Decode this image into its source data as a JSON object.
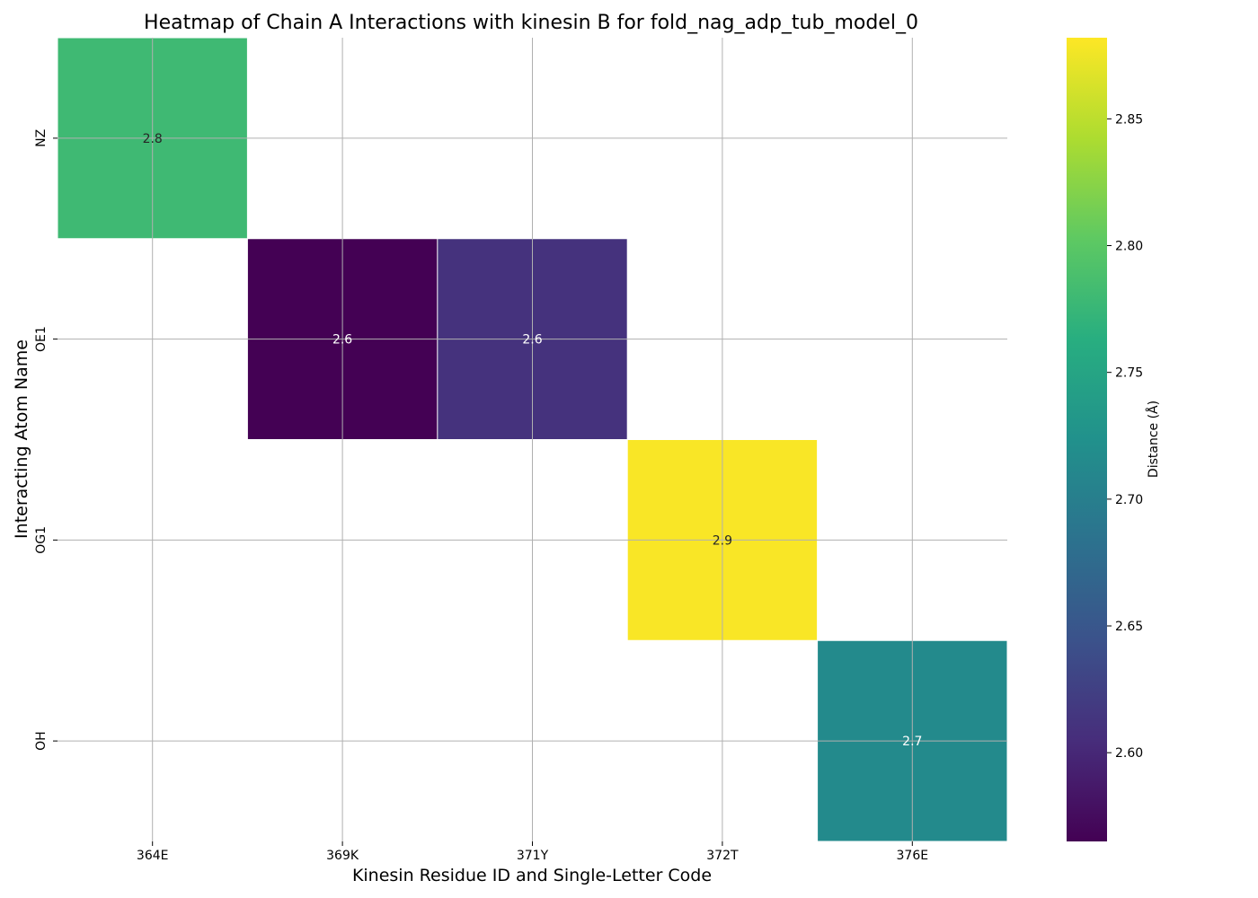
{
  "chart_data": {
    "type": "heatmap",
    "title": "Heatmap of Chain A Interactions with kinesin B for fold_nag_adp_tub_model_0",
    "xlabel": "Kinesin Residue ID and Single-Letter Code",
    "ylabel": "Interacting Atom Name",
    "x_categories": [
      "364E",
      "369K",
      "371Y",
      "372T",
      "376E"
    ],
    "y_categories": [
      "NZ",
      "OE1",
      "OG1",
      "OH"
    ],
    "cells": [
      {
        "x": "364E",
        "y": "NZ",
        "value": 2.78,
        "label": "2.8"
      },
      {
        "x": "369K",
        "y": "OE1",
        "value": 2.565,
        "label": "2.6"
      },
      {
        "x": "371Y",
        "y": "OE1",
        "value": 2.61,
        "label": "2.6"
      },
      {
        "x": "372T",
        "y": "OG1",
        "value": 2.88,
        "label": "2.9"
      },
      {
        "x": "376E",
        "y": "OH",
        "value": 2.715,
        "label": "2.7"
      }
    ],
    "colormap": "viridis",
    "colorbar": {
      "label": "Distance (Å)",
      "range": [
        2.565,
        2.882
      ],
      "ticks": [
        2.6,
        2.65,
        2.7,
        2.75,
        2.8,
        2.85
      ],
      "tick_labels": [
        "2.60",
        "2.65",
        "2.70",
        "2.75",
        "2.80",
        "2.85"
      ]
    },
    "grid": true
  }
}
